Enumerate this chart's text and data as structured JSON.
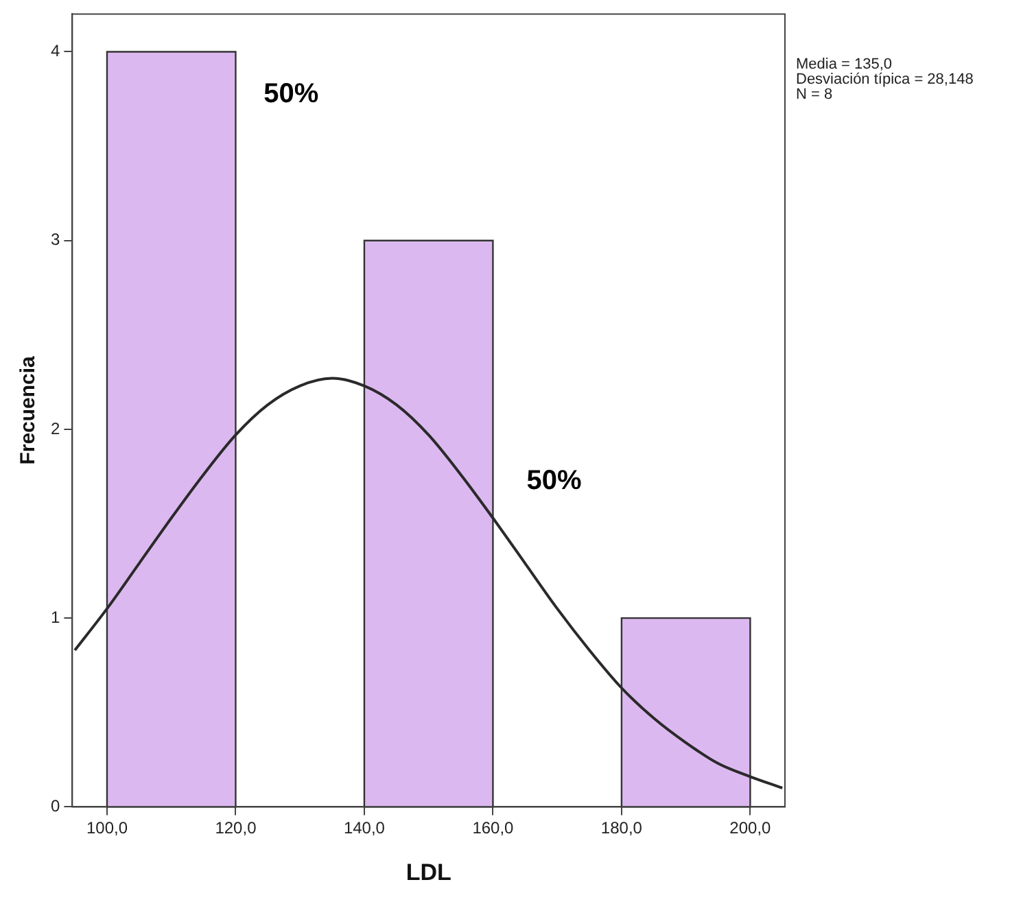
{
  "chart_data": {
    "type": "histogram",
    "xlabel": "LDL",
    "ylabel": "Frecuencia",
    "bins": [
      100,
      120,
      140,
      160,
      180,
      200
    ],
    "values": [
      4,
      0,
      3,
      0,
      1
    ],
    "color": "#dcb8f0",
    "series": [
      {
        "type": "line",
        "color": "#2a2a2a",
        "x": [
          95,
          100,
          105,
          110,
          115,
          120,
          125,
          130,
          135,
          140,
          145,
          150,
          155,
          160,
          165,
          170,
          175,
          180,
          185,
          190,
          195,
          200,
          205
        ],
        "values": [
          0.83,
          1.05,
          1.29,
          1.53,
          1.76,
          1.97,
          2.13,
          2.23,
          2.27,
          2.23,
          2.13,
          1.97,
          1.76,
          1.53,
          1.29,
          1.05,
          0.83,
          0.63,
          0.47,
          0.34,
          0.23,
          0.16,
          0.1
        ]
      }
    ],
    "marker": "none",
    "grid": false,
    "legend": false,
    "xlim": [
      94.6,
      205.4
    ],
    "ylim": [
      0,
      4.2
    ],
    "xticks": [
      {
        "value": 100,
        "label": "100,0"
      },
      {
        "value": 120,
        "label": "120,0"
      },
      {
        "value": 140,
        "label": "140,0"
      },
      {
        "value": 160,
        "label": "160,0"
      },
      {
        "value": 180,
        "label": "180,0"
      },
      {
        "value": 200,
        "label": "200,0"
      }
    ],
    "yticks": [
      0,
      1,
      2,
      3,
      4
    ],
    "annotations": [
      "50%",
      "50%",
      "Media = 135,0",
      "Desviación típica = 28,148",
      "N = 8"
    ]
  }
}
